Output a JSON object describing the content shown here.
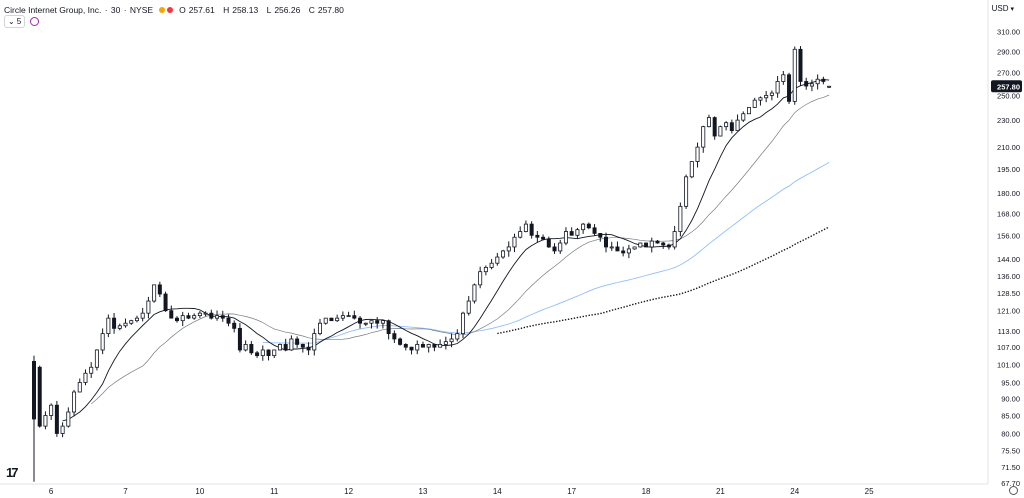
{
  "header": {
    "symbol_title": "Circle Internet Group, Inc.",
    "interval": "30",
    "exchange": "NYSE",
    "open_label": "O",
    "open": "257.61",
    "high_label": "H",
    "high": "258.13",
    "low_label": "L",
    "low": "256.26",
    "close_label": "C",
    "close": "257.80",
    "indicator_count": "5",
    "currency": "USD",
    "status_colors": [
      "#f7a600",
      "#f23645"
    ]
  },
  "icons": {
    "logo": "tradingview-logo-icon",
    "settings": "gear-icon",
    "visibility": "eye-icon",
    "collapse": "chevron-down-icon"
  },
  "colors": {
    "candle": "#131722",
    "sma_fast": "#131722",
    "sma_slow": "#787b86",
    "ma_blue": "#90bff9",
    "ma_dotted": "#131722",
    "price_badge": "#131722"
  },
  "chart_data": {
    "type": "candlestick",
    "y_scale": "log",
    "ylim": [
      67.7,
      318
    ],
    "y_ticks": [
      310,
      290,
      270,
      250,
      230,
      210,
      195,
      180,
      168,
      156,
      144,
      136,
      128.5,
      121,
      113,
      107,
      101,
      95,
      90,
      85,
      80,
      75.5,
      71.5,
      67.7
    ],
    "y_tick_labels": [
      "310.00",
      "290.00",
      "270.00",
      "250.00",
      "230.00",
      "210.00",
      "195.00",
      "180.00",
      "168.00",
      "156.00",
      "144.00",
      "136.00",
      "128.50",
      "121.00",
      "113.00",
      "107.00",
      "101.00",
      "95.00",
      "90.00",
      "85.00",
      "80.00",
      "75.50",
      "71.50",
      "67.70"
    ],
    "last_price_label": "257.80",
    "last_price": 257.8,
    "x_ticks": [
      "6",
      "7",
      "10",
      "11",
      "12",
      "13",
      "14",
      "17",
      "18",
      "21",
      "24",
      "25"
    ],
    "x_tick_index": [
      3,
      16,
      29,
      42,
      55,
      68,
      81,
      94,
      107,
      120,
      133,
      146
    ],
    "session_closes": [
      [
        100,
        82,
        85,
        88,
        80,
        82,
        86,
        92,
        95,
        98
      ],
      [
        100,
        106,
        112,
        118,
        114,
        115,
        116,
        117,
        118,
        120,
        125,
        132,
        128
      ],
      [
        121,
        118,
        117,
        119,
        118,
        119,
        120,
        120,
        118,
        119,
        118,
        116,
        114
      ],
      [
        106,
        108,
        105,
        104,
        106,
        104,
        106,
        108,
        106,
        110,
        108,
        107,
        106
      ],
      [
        112,
        116,
        118,
        117,
        118,
        119,
        119,
        118,
        116,
        116,
        117,
        116,
        117
      ],
      [
        112,
        110,
        108,
        107,
        106,
        108,
        107,
        108,
        107,
        108,
        109,
        110,
        112
      ],
      [
        120,
        125,
        132,
        138,
        140,
        142,
        145,
        148,
        150,
        155,
        158,
        162,
        156
      ],
      [
        155,
        154,
        150,
        148,
        152,
        158,
        156,
        159,
        162,
        160,
        157,
        155,
        150
      ],
      [
        150,
        148,
        147,
        149,
        150,
        152,
        150,
        153,
        152,
        151,
        150,
        158,
        172
      ],
      [
        190,
        200,
        210,
        225,
        232,
        218,
        225,
        228,
        222,
        230,
        235,
        240,
        246
      ],
      [
        248,
        250,
        252,
        262,
        268,
        245,
        292,
        262,
        258,
        260,
        264,
        262,
        258
      ]
    ],
    "series": [
      {
        "name": "",
        "kind": "sma_fast"
      },
      {
        "name": "",
        "kind": "sma_slow"
      },
      {
        "name": "",
        "kind": "ma_blue"
      },
      {
        "name": "",
        "kind": "ma_dotted"
      }
    ],
    "grid": false,
    "legend": "none"
  }
}
